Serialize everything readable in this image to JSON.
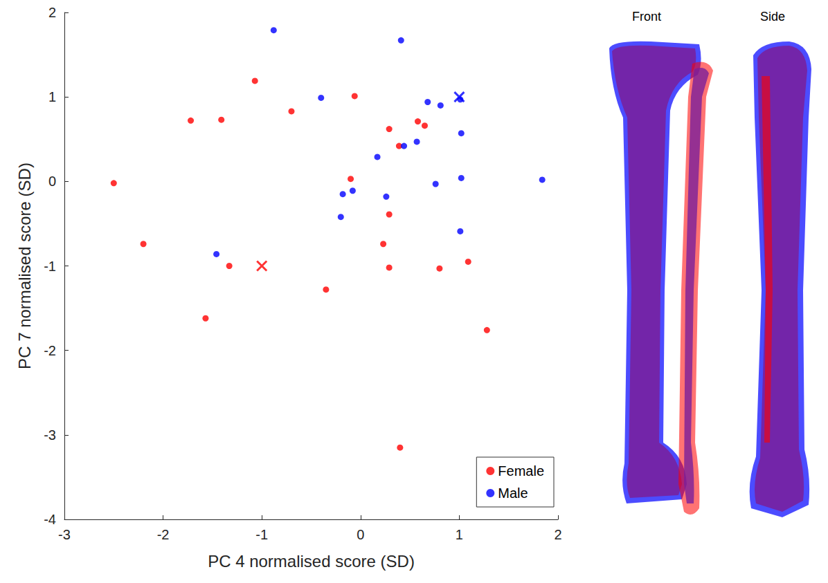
{
  "chart_data": {
    "type": "scatter",
    "xlabel": "PC 4 normalised score (SD)",
    "ylabel": "PC 7 normalised score (SD)",
    "xlim": [
      -3,
      2
    ],
    "xticks": [
      -3,
      -2,
      -1,
      0,
      1,
      2
    ],
    "ylim": [
      -4,
      2
    ],
    "yticks": [
      -4,
      -3,
      -2,
      -1,
      0,
      1,
      2
    ],
    "grid": false,
    "legend": "lower right",
    "series": [
      {
        "name": "Female",
        "color": "#ff0000",
        "marker": "circle",
        "x": [
          -2.5,
          -2.2,
          -1.72,
          -1.41,
          -1.07,
          -0.7,
          -0.06,
          -1.33,
          -1.57,
          -0.35,
          -0.1,
          0.29,
          0.39,
          0.58,
          0.65,
          0.29,
          0.23,
          0.29,
          0.8,
          1.09,
          1.28,
          0.4
        ],
        "y": [
          -0.02,
          -0.74,
          0.72,
          0.73,
          1.19,
          0.83,
          1.01,
          -1.0,
          -1.62,
          -1.28,
          0.03,
          0.62,
          0.42,
          0.71,
          0.66,
          -0.39,
          -0.74,
          -1.02,
          -1.03,
          -0.95,
          -1.76,
          -3.15
        ]
      },
      {
        "name": "Male",
        "color": "#0000ff",
        "marker": "circle",
        "x": [
          -0.88,
          0.41,
          -0.4,
          0.68,
          0.81,
          1.01,
          1.02,
          0.44,
          0.57,
          0.17,
          -0.18,
          -0.08,
          -0.2,
          0.26,
          0.76,
          1.02,
          1.01,
          1.84,
          -1.46
        ],
        "y": [
          1.79,
          1.67,
          0.99,
          0.94,
          0.9,
          0.97,
          0.57,
          0.42,
          0.47,
          0.29,
          -0.15,
          -0.11,
          -0.42,
          -0.18,
          -0.03,
          0.04,
          -0.59,
          0.02,
          -0.86
        ]
      }
    ],
    "highlighted": [
      {
        "series": "Female",
        "x": -1,
        "y": -1,
        "marker": "x"
      },
      {
        "series": "Male",
        "x": 1,
        "y": 1,
        "marker": "x"
      }
    ]
  },
  "panel_labels": [
    "Front",
    "Side"
  ]
}
